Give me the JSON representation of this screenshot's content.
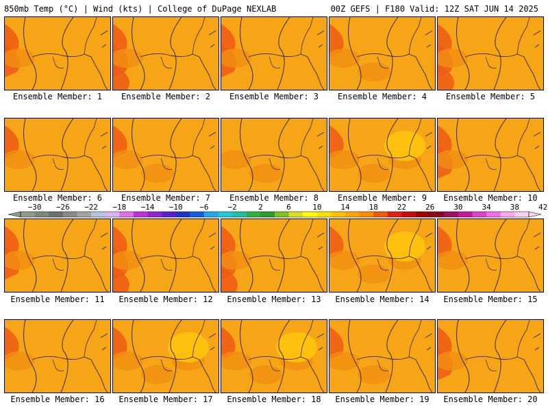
{
  "header": {
    "left": "850mb Temp (°C) | Wind (kts) | College of DuPage NEXLAB",
    "right": "00Z GEFS | F180 Valid: 12Z SAT JUN 14 2025"
  },
  "members": [
    {
      "label": "Ensemble Member: 1",
      "hot": 2,
      "warm": 1
    },
    {
      "label": "Ensemble Member: 2",
      "hot": 3,
      "warm": 1
    },
    {
      "label": "Ensemble Member: 3",
      "hot": 2,
      "warm": 1
    },
    {
      "label": "Ensemble Member: 4",
      "hot": 1,
      "warm": 2
    },
    {
      "label": "Ensemble Member: 5",
      "hot": 3,
      "warm": 1
    },
    {
      "label": "Ensemble Member: 6",
      "hot": 1,
      "warm": 1
    },
    {
      "label": "Ensemble Member: 7",
      "hot": 1,
      "warm": 2
    },
    {
      "label": "Ensemble Member: 8",
      "hot": 0,
      "warm": 2
    },
    {
      "label": "Ensemble Member: 9",
      "hot": 1,
      "warm": 3
    },
    {
      "label": "Ensemble Member: 10",
      "hot": 2,
      "warm": 1
    },
    {
      "label": "Ensemble Member: 11",
      "hot": 2,
      "warm": 1
    },
    {
      "label": "Ensemble Member: 12",
      "hot": 3,
      "warm": 1
    },
    {
      "label": "Ensemble Member: 13",
      "hot": 3,
      "warm": 1
    },
    {
      "label": "Ensemble Member: 14",
      "hot": 1,
      "warm": 3
    },
    {
      "label": "Ensemble Member: 15",
      "hot": 1,
      "warm": 1
    },
    {
      "label": "Ensemble Member: 16",
      "hot": 1,
      "warm": 1
    },
    {
      "label": "Ensemble Member: 17",
      "hot": 1,
      "warm": 3
    },
    {
      "label": "Ensemble Member: 18",
      "hot": 1,
      "warm": 3
    },
    {
      "label": "Ensemble Member: 19",
      "hot": 1,
      "warm": 2
    },
    {
      "label": "Ensemble Member: 20",
      "hot": 2,
      "warm": 1
    }
  ],
  "colorbar": {
    "ticks": [
      "−30",
      "−26",
      "−22",
      "−18",
      "−14",
      "−10",
      "−6",
      "−2",
      "2",
      "6",
      "10",
      "14",
      "18",
      "22",
      "26",
      "30",
      "34",
      "38",
      "42"
    ],
    "colors": [
      "#8a9e8a",
      "#7a8a7a",
      "#6f6f6f",
      "#8a8a8a",
      "#a3a3a3",
      "#b8c4dc",
      "#d8b4f0",
      "#e070e8",
      "#c030d8",
      "#8f25d0",
      "#5a1fcf",
      "#2030c8",
      "#1060e0",
      "#20a8e8",
      "#20c8d8",
      "#20c0a0",
      "#30b040",
      "#2c9a2c",
      "#80c020",
      "#d8e020",
      "#ffff00",
      "#ffe000",
      "#ffc000",
      "#ffa500",
      "#ff8a00",
      "#f05a0a",
      "#e02010",
      "#c80a0a",
      "#a00000",
      "#8a0820",
      "#a01060",
      "#c818a0",
      "#e040d0",
      "#f070e8",
      "#f8a8f0",
      "#f8d0f0"
    ]
  },
  "palette": {
    "base": "#f5a516",
    "warm": "#f28e12",
    "hot": "#ee5a14",
    "cool": "#ffc40c",
    "line": "#3a2a1a"
  }
}
